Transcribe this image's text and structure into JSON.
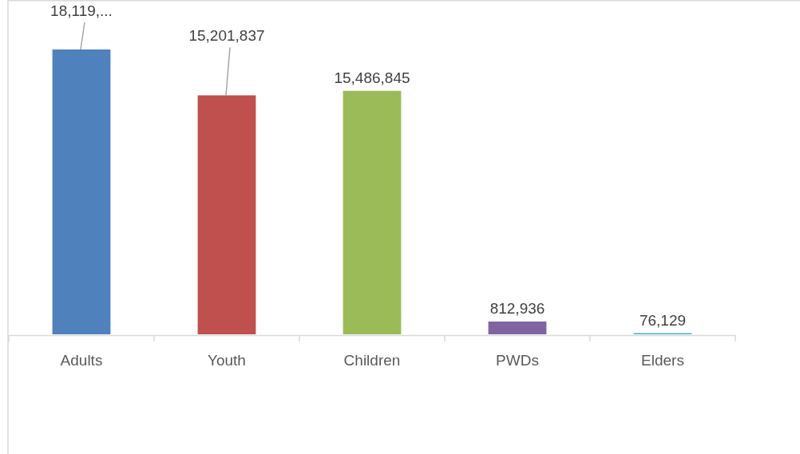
{
  "chart_data": {
    "type": "bar",
    "categories": [
      "Adults",
      "Youth",
      "Children",
      "PWDs",
      "Elders"
    ],
    "values": [
      18119000,
      15201837,
      15486845,
      812936,
      76129
    ],
    "colors": [
      "#4f81bd",
      "#c0504d",
      "#9bbb59",
      "#8064a2",
      "#4bacc6"
    ],
    "value_labels": [
      "18,119,...",
      "15,201,837",
      "15,486,845",
      "812,936",
      "76,129"
    ]
  }
}
